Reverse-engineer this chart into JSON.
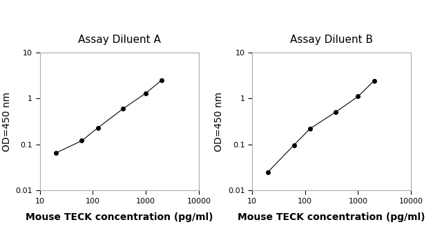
{
  "panel_A": {
    "title": "Assay Diluent A",
    "x": [
      20,
      62,
      125,
      375,
      1000,
      2000
    ],
    "y": [
      0.065,
      0.12,
      0.23,
      0.6,
      1.3,
      2.5
    ],
    "xlabel": "Mouse TECK concentration (pg/ml)",
    "ylabel": "OD=450 nm",
    "xlim": [
      10,
      10000
    ],
    "ylim": [
      0.01,
      10
    ]
  },
  "panel_B": {
    "title": "Assay Diluent B",
    "x": [
      20,
      62,
      125,
      375,
      1000,
      2000
    ],
    "y": [
      0.025,
      0.097,
      0.22,
      0.5,
      1.1,
      2.4
    ],
    "xlabel": "Mouse TECK concentration (pg/ml)",
    "ylabel": "OD=450 nm",
    "xlim": [
      10,
      10000
    ],
    "ylim": [
      0.01,
      10
    ]
  },
  "line_color": "#000000",
  "marker_color": "#000000",
  "marker_size": 4,
  "line_width": 0.8,
  "title_fontsize": 11,
  "label_fontsize": 10,
  "tick_fontsize": 8,
  "spine_color": "#aaaaaa",
  "background_color": "#ffffff"
}
